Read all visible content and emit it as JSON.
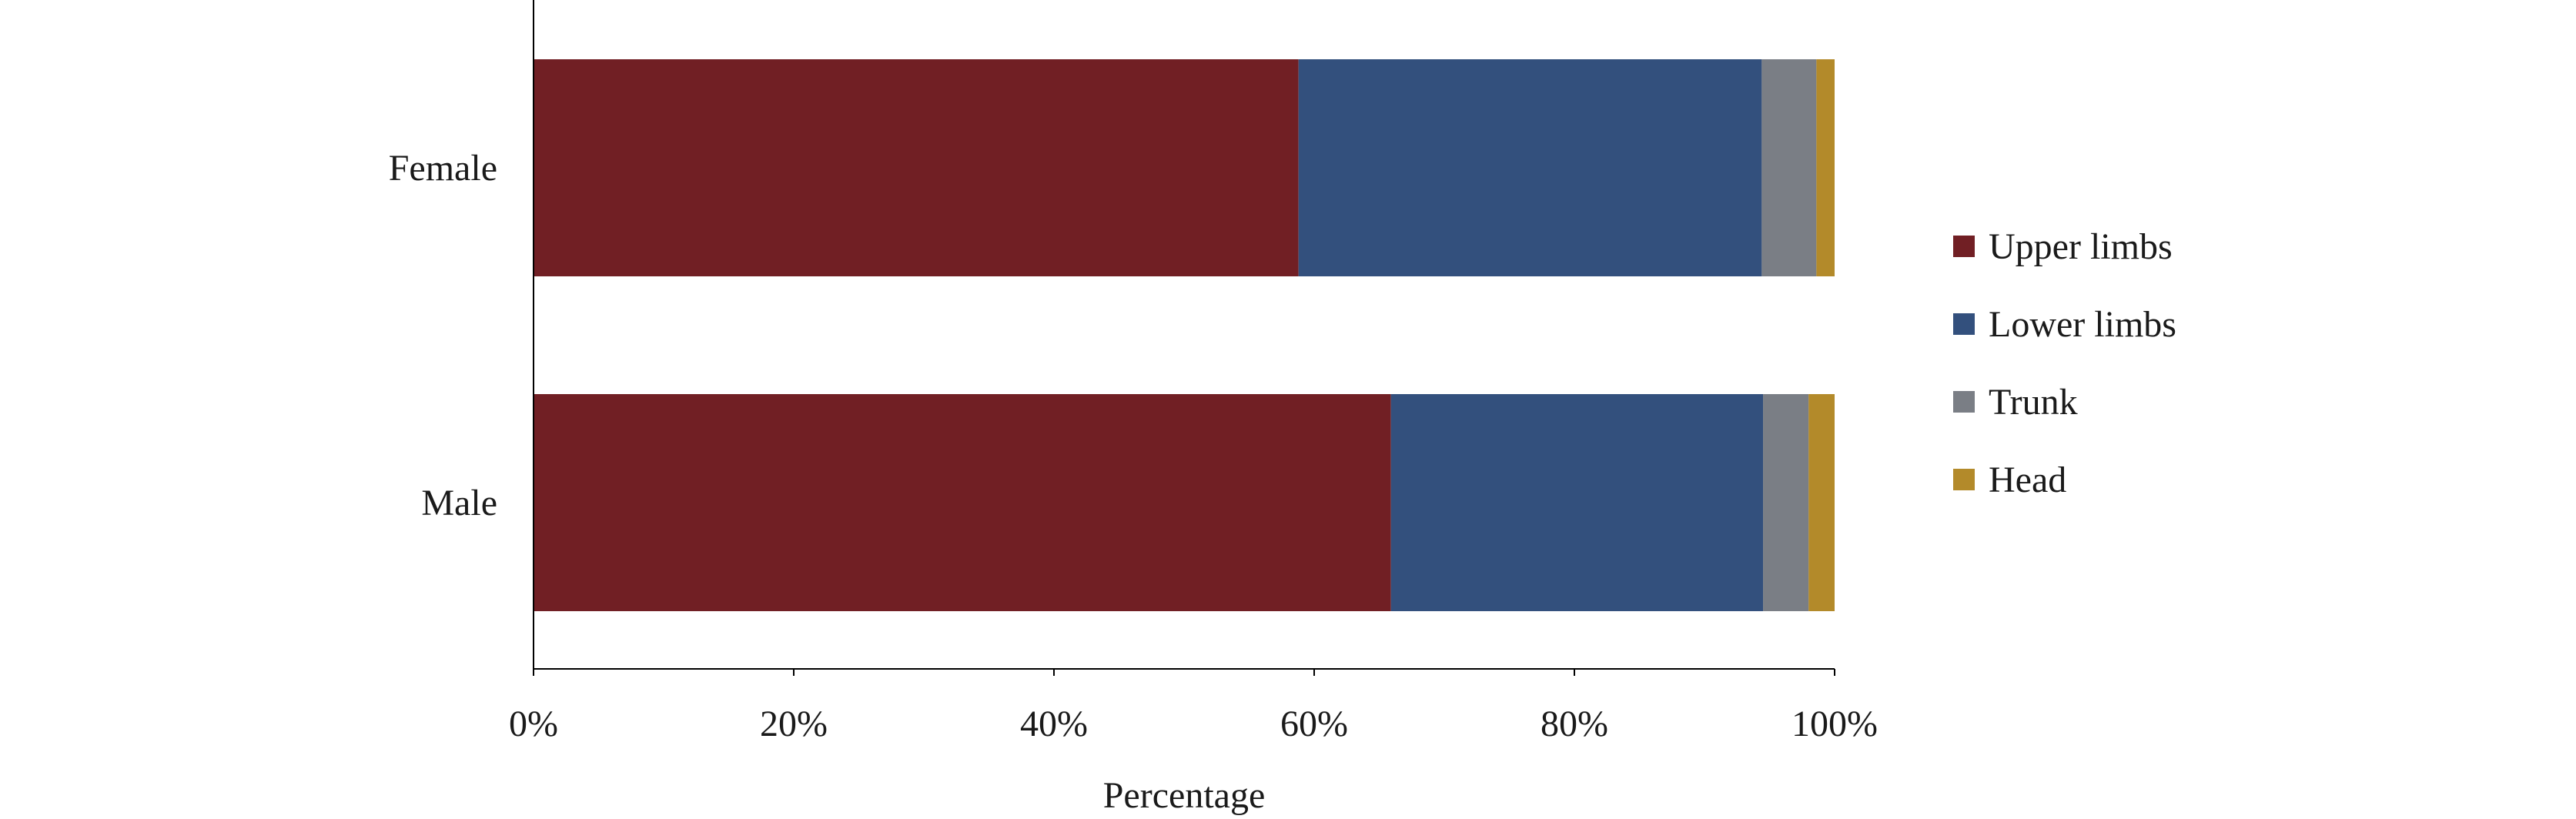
{
  "chart_data": {
    "type": "bar",
    "orientation": "horizontal",
    "stacked": true,
    "percent_scale": true,
    "categories": [
      "Female",
      "Male"
    ],
    "series": [
      {
        "name": "Upper limbs",
        "color": "#711F24",
        "values": [
          58.8,
          65.9
        ]
      },
      {
        "name": "Lower limbs",
        "color": "#33507D",
        "values": [
          35.6,
          28.6
        ]
      },
      {
        "name": "Trunk",
        "color": "#7A7E85",
        "values": [
          4.2,
          3.5
        ]
      },
      {
        "name": "Head",
        "color": "#B38A2A",
        "values": [
          1.4,
          2.0
        ]
      }
    ],
    "xlabel": "Percentage",
    "ylabel": "",
    "xlim": [
      0,
      100
    ],
    "xticks": [
      0,
      20,
      40,
      60,
      80,
      100
    ],
    "xtick_labels": [
      "0%",
      "20%",
      "40%",
      "60%",
      "80%",
      "100%"
    ],
    "grid": false,
    "legend_position": "right"
  }
}
